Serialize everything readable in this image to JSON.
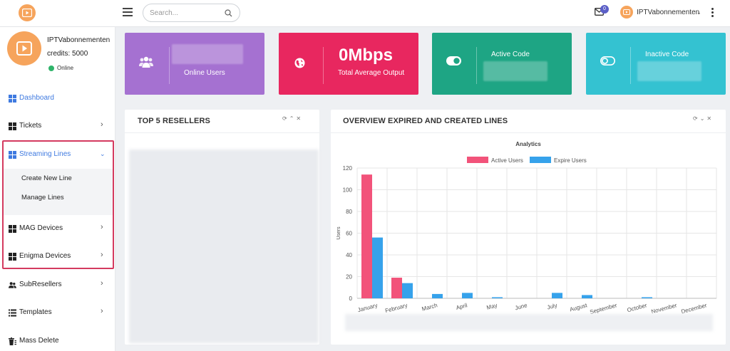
{
  "topbar": {
    "search_placeholder": "Search...",
    "mail_count": "0",
    "username": "IPTVabonnementen"
  },
  "sidebar": {
    "profile": {
      "name": "IPTVabonnementen",
      "credits": "credits: 5000",
      "status": "Online",
      "status_color": "#2fb46a"
    },
    "items": [
      {
        "label": "Dashboard",
        "icon": "grid-icon",
        "active": true
      },
      {
        "label": "Tickets",
        "icon": "grid-icon"
      },
      {
        "label": "Streaming Lines",
        "icon": "grid-icon",
        "expanded": true
      },
      {
        "label": "MAG Devices",
        "icon": "grid-icon"
      },
      {
        "label": "Enigma Devices",
        "icon": "grid-icon"
      },
      {
        "label": "SubResellers",
        "icon": "users-icon"
      },
      {
        "label": "Templates",
        "icon": "list-icon"
      },
      {
        "label": "Mass Delete",
        "icon": "trash-icon"
      }
    ],
    "sub_items": [
      "Create New Line",
      "Manage Lines"
    ]
  },
  "cards": [
    {
      "label": "Online Users",
      "color": "#a571d1",
      "icon": "users-icon"
    },
    {
      "value": "0Mbps",
      "label": "Total Average Output",
      "color": "#e8275f",
      "icon": "globe-icon"
    },
    {
      "label": "Active Code",
      "color": "#1ea584",
      "icon": "toggle-on-icon"
    },
    {
      "label": "Inactive Code",
      "color": "#34c2d1",
      "icon": "toggle-off-icon"
    }
  ],
  "resellers_panel": {
    "title": "TOP 5 RESELLERS"
  },
  "overview_panel": {
    "title": "OVERVIEW EXPIRED AND CREATED LINES"
  },
  "chart_data": {
    "type": "bar",
    "title": "Analytics",
    "ylabel": "Users",
    "xlabel": "",
    "ylim": [
      0,
      120
    ],
    "yticks": [
      0,
      20,
      40,
      60,
      80,
      100,
      120
    ],
    "legend_position": "top-center",
    "grid": true,
    "categories": [
      "January",
      "February",
      "March",
      "April",
      "May",
      "June",
      "July",
      "August",
      "September",
      "October",
      "November",
      "December"
    ],
    "series": [
      {
        "name": "Active Users",
        "color": "#f2537a",
        "values": [
          114,
          19,
          0,
          0,
          0,
          0,
          0,
          0,
          0,
          0,
          0,
          0
        ]
      },
      {
        "name": "Expire Users",
        "color": "#36a2eb",
        "values": [
          56,
          14,
          4,
          5,
          1,
          0,
          5,
          3,
          0,
          1,
          0,
          0
        ]
      }
    ]
  }
}
